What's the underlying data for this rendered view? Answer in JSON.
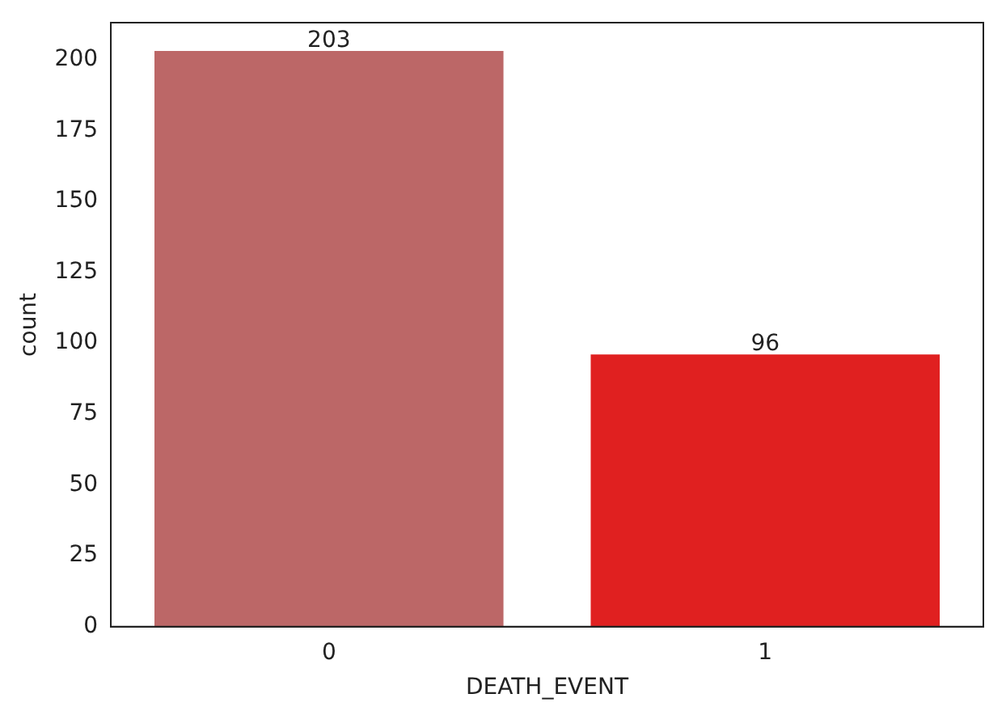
{
  "chart_data": {
    "type": "bar",
    "categories": [
      "0",
      "1"
    ],
    "values": [
      203,
      96
    ],
    "colors": [
      "#bc6767",
      "#e02020"
    ],
    "xlabel": "DEATH_EVENT",
    "ylabel": "count",
    "ylim": [
      0,
      213
    ],
    "yticks": [
      0,
      25,
      50,
      75,
      100,
      125,
      150,
      175,
      200
    ],
    "data_labels": true,
    "grid": false,
    "legend": false
  }
}
